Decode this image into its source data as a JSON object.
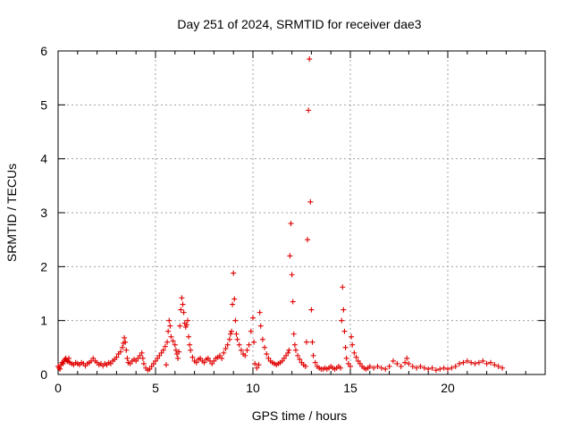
{
  "chart_data": {
    "type": "scatter",
    "title": "Day 251 of 2024, SRMTID for receiver dae3",
    "xlabel": "GPS time / hours",
    "ylabel": "SRMTID / TECUs",
    "xlim": [
      0,
      25
    ],
    "ylim": [
      0,
      6
    ],
    "xticks": [
      0,
      5,
      10,
      15,
      20
    ],
    "yticks": [
      0,
      1,
      2,
      3,
      4,
      5,
      6
    ],
    "grid": true,
    "marker": "+",
    "color": "#e00000",
    "series": [
      {
        "name": "SRMTID",
        "points": [
          [
            0.0,
            0.15
          ],
          [
            0.05,
            0.12
          ],
          [
            0.1,
            0.1
          ],
          [
            0.15,
            0.18
          ],
          [
            0.2,
            0.22
          ],
          [
            0.25,
            0.2
          ],
          [
            0.3,
            0.25
          ],
          [
            0.35,
            0.28
          ],
          [
            0.4,
            0.3
          ],
          [
            0.45,
            0.26
          ],
          [
            0.5,
            0.24
          ],
          [
            0.55,
            0.3
          ],
          [
            0.6,
            0.22
          ],
          [
            0.7,
            0.2
          ],
          [
            0.8,
            0.18
          ],
          [
            0.9,
            0.22
          ],
          [
            1.0,
            0.2
          ],
          [
            1.1,
            0.18
          ],
          [
            1.2,
            0.22
          ],
          [
            1.3,
            0.2
          ],
          [
            1.4,
            0.16
          ],
          [
            1.5,
            0.2
          ],
          [
            1.6,
            0.22
          ],
          [
            1.7,
            0.25
          ],
          [
            1.8,
            0.3
          ],
          [
            1.9,
            0.25
          ],
          [
            2.0,
            0.22
          ],
          [
            2.1,
            0.18
          ],
          [
            2.2,
            0.2
          ],
          [
            2.3,
            0.16
          ],
          [
            2.4,
            0.2
          ],
          [
            2.5,
            0.18
          ],
          [
            2.6,
            0.22
          ],
          [
            2.7,
            0.2
          ],
          [
            2.8,
            0.25
          ],
          [
            2.9,
            0.28
          ],
          [
            3.0,
            0.32
          ],
          [
            3.1,
            0.38
          ],
          [
            3.2,
            0.42
          ],
          [
            3.3,
            0.5
          ],
          [
            3.35,
            0.58
          ],
          [
            3.4,
            0.68
          ],
          [
            3.45,
            0.6
          ],
          [
            3.5,
            0.45
          ],
          [
            3.55,
            0.3
          ],
          [
            3.6,
            0.22
          ],
          [
            3.7,
            0.2
          ],
          [
            3.8,
            0.25
          ],
          [
            3.9,
            0.28
          ],
          [
            4.0,
            0.25
          ],
          [
            4.1,
            0.3
          ],
          [
            4.2,
            0.35
          ],
          [
            4.3,
            0.4
          ],
          [
            4.35,
            0.3
          ],
          [
            4.4,
            0.2
          ],
          [
            4.5,
            0.12
          ],
          [
            4.6,
            0.08
          ],
          [
            4.7,
            0.1
          ],
          [
            4.8,
            0.15
          ],
          [
            4.9,
            0.2
          ],
          [
            5.0,
            0.25
          ],
          [
            5.1,
            0.3
          ],
          [
            5.2,
            0.35
          ],
          [
            5.3,
            0.4
          ],
          [
            5.4,
            0.45
          ],
          [
            5.5,
            0.52
          ],
          [
            5.55,
            0.18
          ],
          [
            5.6,
            0.6
          ],
          [
            5.65,
            0.8
          ],
          [
            5.7,
            1.0
          ],
          [
            5.75,
            0.9
          ],
          [
            5.8,
            0.7
          ],
          [
            5.9,
            0.62
          ],
          [
            6.0,
            0.55
          ],
          [
            6.05,
            0.45
          ],
          [
            6.1,
            0.38
          ],
          [
            6.15,
            0.3
          ],
          [
            6.2,
            0.42
          ],
          [
            6.25,
            0.9
          ],
          [
            6.3,
            1.2
          ],
          [
            6.35,
            1.42
          ],
          [
            6.4,
            1.3
          ],
          [
            6.45,
            1.15
          ],
          [
            6.5,
            0.95
          ],
          [
            6.55,
            0.88
          ],
          [
            6.6,
            0.92
          ],
          [
            6.65,
            1.0
          ],
          [
            6.7,
            0.7
          ],
          [
            6.75,
            0.55
          ],
          [
            6.8,
            0.45
          ],
          [
            6.9,
            0.32
          ],
          [
            7.0,
            0.25
          ],
          [
            7.1,
            0.22
          ],
          [
            7.2,
            0.28
          ],
          [
            7.3,
            0.3
          ],
          [
            7.4,
            0.25
          ],
          [
            7.5,
            0.22
          ],
          [
            7.6,
            0.28
          ],
          [
            7.7,
            0.3
          ],
          [
            7.8,
            0.25
          ],
          [
            7.9,
            0.2
          ],
          [
            8.0,
            0.25
          ],
          [
            8.1,
            0.3
          ],
          [
            8.2,
            0.32
          ],
          [
            8.3,
            0.35
          ],
          [
            8.4,
            0.3
          ],
          [
            8.5,
            0.4
          ],
          [
            8.6,
            0.48
          ],
          [
            8.7,
            0.55
          ],
          [
            8.8,
            0.65
          ],
          [
            8.85,
            0.75
          ],
          [
            8.9,
            0.8
          ],
          [
            8.95,
            1.3
          ],
          [
            9.0,
            1.88
          ],
          [
            9.05,
            1.4
          ],
          [
            9.1,
            1.0
          ],
          [
            9.15,
            0.75
          ],
          [
            9.2,
            0.65
          ],
          [
            9.3,
            0.55
          ],
          [
            9.4,
            0.45
          ],
          [
            9.5,
            0.38
          ],
          [
            9.6,
            0.35
          ],
          [
            9.7,
            0.45
          ],
          [
            9.8,
            0.55
          ],
          [
            9.9,
            0.8
          ],
          [
            10.0,
            1.05
          ],
          [
            10.05,
            0.6
          ],
          [
            10.1,
            0.2
          ],
          [
            10.2,
            0.12
          ],
          [
            10.3,
            0.18
          ],
          [
            10.35,
            1.15
          ],
          [
            10.4,
            0.9
          ],
          [
            10.5,
            0.65
          ],
          [
            10.6,
            0.5
          ],
          [
            10.7,
            0.38
          ],
          [
            10.8,
            0.3
          ],
          [
            10.9,
            0.25
          ],
          [
            11.0,
            0.22
          ],
          [
            11.1,
            0.2
          ],
          [
            11.2,
            0.18
          ],
          [
            11.3,
            0.2
          ],
          [
            11.4,
            0.22
          ],
          [
            11.5,
            0.25
          ],
          [
            11.6,
            0.3
          ],
          [
            11.7,
            0.35
          ],
          [
            11.8,
            0.4
          ],
          [
            11.85,
            0.45
          ],
          [
            11.9,
            2.2
          ],
          [
            11.95,
            2.8
          ],
          [
            12.0,
            1.85
          ],
          [
            12.05,
            1.35
          ],
          [
            12.1,
            0.75
          ],
          [
            12.15,
            0.55
          ],
          [
            12.2,
            0.45
          ],
          [
            12.3,
            0.35
          ],
          [
            12.4,
            0.28
          ],
          [
            12.5,
            0.22
          ],
          [
            12.6,
            0.18
          ],
          [
            12.7,
            0.15
          ],
          [
            12.75,
            0.6
          ],
          [
            12.8,
            2.5
          ],
          [
            12.85,
            4.9
          ],
          [
            12.9,
            5.85
          ],
          [
            12.95,
            3.2
          ],
          [
            13.0,
            1.2
          ],
          [
            13.05,
            0.6
          ],
          [
            13.1,
            0.35
          ],
          [
            13.2,
            0.22
          ],
          [
            13.3,
            0.15
          ],
          [
            13.4,
            0.12
          ],
          [
            13.5,
            0.1
          ],
          [
            13.6,
            0.1
          ],
          [
            13.7,
            0.12
          ],
          [
            13.8,
            0.1
          ],
          [
            13.9,
            0.12
          ],
          [
            14.0,
            0.15
          ],
          [
            14.1,
            0.12
          ],
          [
            14.2,
            0.1
          ],
          [
            14.3,
            0.12
          ],
          [
            14.4,
            0.15
          ],
          [
            14.5,
            0.12
          ],
          [
            14.55,
            1.0
          ],
          [
            14.6,
            1.62
          ],
          [
            14.65,
            1.2
          ],
          [
            14.7,
            0.8
          ],
          [
            14.75,
            0.5
          ],
          [
            14.8,
            0.3
          ],
          [
            14.9,
            0.2
          ],
          [
            15.0,
            0.15
          ],
          [
            15.05,
            0.7
          ],
          [
            15.1,
            0.55
          ],
          [
            15.2,
            0.4
          ],
          [
            15.3,
            0.32
          ],
          [
            15.4,
            0.25
          ],
          [
            15.5,
            0.2
          ],
          [
            15.6,
            0.15
          ],
          [
            15.7,
            0.12
          ],
          [
            15.8,
            0.1
          ],
          [
            15.9,
            0.12
          ],
          [
            16.0,
            0.15
          ],
          [
            16.2,
            0.12
          ],
          [
            16.4,
            0.15
          ],
          [
            16.6,
            0.12
          ],
          [
            16.8,
            0.1
          ],
          [
            17.0,
            0.15
          ],
          [
            17.2,
            0.25
          ],
          [
            17.4,
            0.2
          ],
          [
            17.6,
            0.15
          ],
          [
            17.8,
            0.22
          ],
          [
            17.9,
            0.3
          ],
          [
            18.0,
            0.2
          ],
          [
            18.2,
            0.15
          ],
          [
            18.4,
            0.12
          ],
          [
            18.6,
            0.15
          ],
          [
            18.8,
            0.12
          ],
          [
            19.0,
            0.1
          ],
          [
            19.2,
            0.12
          ],
          [
            19.4,
            0.08
          ],
          [
            19.6,
            0.1
          ],
          [
            19.8,
            0.12
          ],
          [
            20.0,
            0.1
          ],
          [
            20.2,
            0.12
          ],
          [
            20.4,
            0.15
          ],
          [
            20.6,
            0.2
          ],
          [
            20.8,
            0.22
          ],
          [
            21.0,
            0.25
          ],
          [
            21.2,
            0.22
          ],
          [
            21.4,
            0.2
          ],
          [
            21.6,
            0.22
          ],
          [
            21.8,
            0.25
          ],
          [
            22.0,
            0.2
          ],
          [
            22.2,
            0.22
          ],
          [
            22.4,
            0.18
          ],
          [
            22.6,
            0.15
          ],
          [
            22.8,
            0.12
          ]
        ]
      }
    ]
  }
}
